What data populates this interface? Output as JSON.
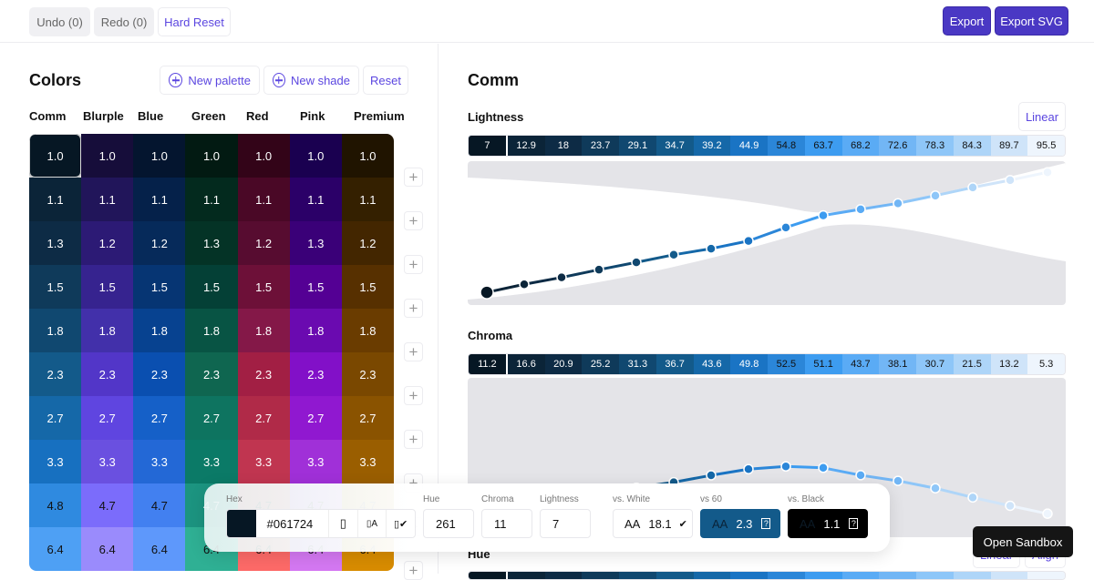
{
  "toolbar": {
    "undo": "Undo (0)",
    "redo": "Redo (0)",
    "hard_reset": "Hard Reset",
    "export": "Export",
    "export_svg": "Export SVG"
  },
  "colors": {
    "title": "Colors",
    "new_palette": "New palette",
    "new_shade": "New shade",
    "reset": "Reset",
    "palettes": [
      {
        "name": "Comm",
        "cells": [
          [
            "1.0",
            "#061724"
          ],
          [
            "1.1",
            "#0b2438"
          ],
          [
            "1.3",
            "#0d2b45"
          ],
          [
            "1.5",
            "#0f3a5a"
          ],
          [
            "1.8",
            "#104870"
          ],
          [
            "2.3",
            "#135a8a"
          ],
          [
            "2.7",
            "#1568a8"
          ],
          [
            "3.3",
            "#1770c0"
          ],
          [
            "4.8",
            "#2f8ae0"
          ],
          [
            "6.4",
            "#4ea0f4"
          ]
        ]
      },
      {
        "name": "Blurple",
        "cells": [
          [
            "1.0",
            "#160d3a"
          ],
          [
            "1.1",
            "#21155a"
          ],
          [
            "1.2",
            "#2c1a75"
          ],
          [
            "1.5",
            "#36238f"
          ],
          [
            "1.8",
            "#4230aa"
          ],
          [
            "2.3",
            "#5236c8"
          ],
          [
            "2.7",
            "#5f45e0"
          ],
          [
            "3.3",
            "#6a50e0"
          ],
          [
            "4.7",
            "#7b6cfb"
          ],
          [
            "6.4",
            "#9a8bfc"
          ]
        ]
      },
      {
        "name": "Blue",
        "cells": [
          [
            "1.0",
            "#04152f"
          ],
          [
            "1.1",
            "#05214a"
          ],
          [
            "1.2",
            "#062a5a"
          ],
          [
            "1.5",
            "#063573"
          ],
          [
            "1.8",
            "#074290"
          ],
          [
            "2.3",
            "#0a4fb0"
          ],
          [
            "2.7",
            "#1560c8"
          ],
          [
            "3.3",
            "#2368d6"
          ],
          [
            "4.7",
            "#4280f0"
          ],
          [
            "6.4",
            "#5e98fb"
          ]
        ]
      },
      {
        "name": "Green",
        "cells": [
          [
            "1.0",
            "#021a12"
          ],
          [
            "1.1",
            "#032a1e"
          ],
          [
            "1.3",
            "#043326"
          ],
          [
            "1.5",
            "#044036"
          ],
          [
            "1.8",
            "#085444"
          ],
          [
            "2.3",
            "#0f6650"
          ],
          [
            "2.7",
            "#0e7460"
          ],
          [
            "3.3",
            "#0b7a67"
          ],
          [
            "4.7",
            "#1c9480"
          ],
          [
            "6.4",
            "#2fb094"
          ]
        ]
      },
      {
        "name": "Red",
        "cells": [
          [
            "1.0",
            "#330418"
          ],
          [
            "1.1",
            "#4a0826"
          ],
          [
            "1.2",
            "#570c30"
          ],
          [
            "1.5",
            "#6d1038"
          ],
          [
            "1.8",
            "#841848"
          ],
          [
            "2.3",
            "#a21f44"
          ],
          [
            "2.7",
            "#b02a48"
          ],
          [
            "3.3",
            "#c03550"
          ],
          [
            "4.7",
            "#e04e58"
          ],
          [
            "6.4",
            "#fd6a68"
          ]
        ]
      },
      {
        "name": "Pink",
        "cells": [
          [
            "1.0",
            "#1a0050"
          ],
          [
            "1.1",
            "#2b0068"
          ],
          [
            "1.3",
            "#3a0078"
          ],
          [
            "1.5",
            "#540094"
          ],
          [
            "1.8",
            "#6a0ab0"
          ],
          [
            "2.3",
            "#8210c8"
          ],
          [
            "2.7",
            "#9018d0"
          ],
          [
            "3.3",
            "#a030d8"
          ],
          [
            "4.7",
            "#c060e8"
          ],
          [
            "6.4",
            "#d478f2"
          ]
        ]
      },
      {
        "name": "Premium",
        "cells": [
          [
            "1.0",
            "#201400"
          ],
          [
            "1.1",
            "#342000"
          ],
          [
            "1.2",
            "#432600"
          ],
          [
            "1.5",
            "#573000"
          ],
          [
            "1.8",
            "#6a3c00"
          ],
          [
            "2.3",
            "#7a4800"
          ],
          [
            "2.7",
            "#8a5300"
          ],
          [
            "3.3",
            "#9a5e00"
          ],
          [
            "4.7",
            "#c07a00"
          ],
          [
            "6.4",
            "#d88c00"
          ]
        ]
      }
    ]
  },
  "detail": {
    "title": "Comm",
    "lightness": {
      "label": "Lightness",
      "mode": "Linear",
      "values": [
        "7",
        "12.9",
        "18",
        "23.7",
        "29.1",
        "34.7",
        "39.2",
        "44.9",
        "54.8",
        "63.7",
        "68.2",
        "72.6",
        "78.3",
        "84.3",
        "89.7",
        "95.5"
      ]
    },
    "chroma": {
      "label": "Chroma",
      "values": [
        "11.2",
        "16.6",
        "20.9",
        "25.2",
        "31.3",
        "36.7",
        "43.6",
        "49.8",
        "52.5",
        "51.1",
        "43.7",
        "38.1",
        "30.7",
        "21.5",
        "13.2",
        "5.3"
      ]
    },
    "hue": {
      "label": "Hue",
      "linear": "Linear",
      "align": "Align"
    },
    "shade_colors": [
      "#061724",
      "#0b2438",
      "#0d2b45",
      "#0f3a5a",
      "#104870",
      "#135a8a",
      "#1568a8",
      "#1a74c4",
      "#2b86d8",
      "#3d9cf0",
      "#5aabf5",
      "#72b6f5",
      "#8ec6f8",
      "#aed5f8",
      "#cfe4f9",
      "#eef5fd"
    ]
  },
  "editor": {
    "hex_label": "Hex",
    "hex": "#061724",
    "swatch": "#061724",
    "hue_label": "Hue",
    "hue": "261",
    "chroma_label": "Chroma",
    "chroma": "11",
    "lightness_label": "Lightness",
    "lightness": "7",
    "vs_white": {
      "label": "vs. White",
      "grade": "AA",
      "ratio": "18.1"
    },
    "vs_60": {
      "label": "vs 60",
      "grade": "AA",
      "ratio": "2.3",
      "bg": "#135a8a"
    },
    "vs_black": {
      "label": "vs. Black",
      "grade": "AA",
      "ratio": "1.1"
    }
  },
  "tooltip": "Open Sandbox"
}
